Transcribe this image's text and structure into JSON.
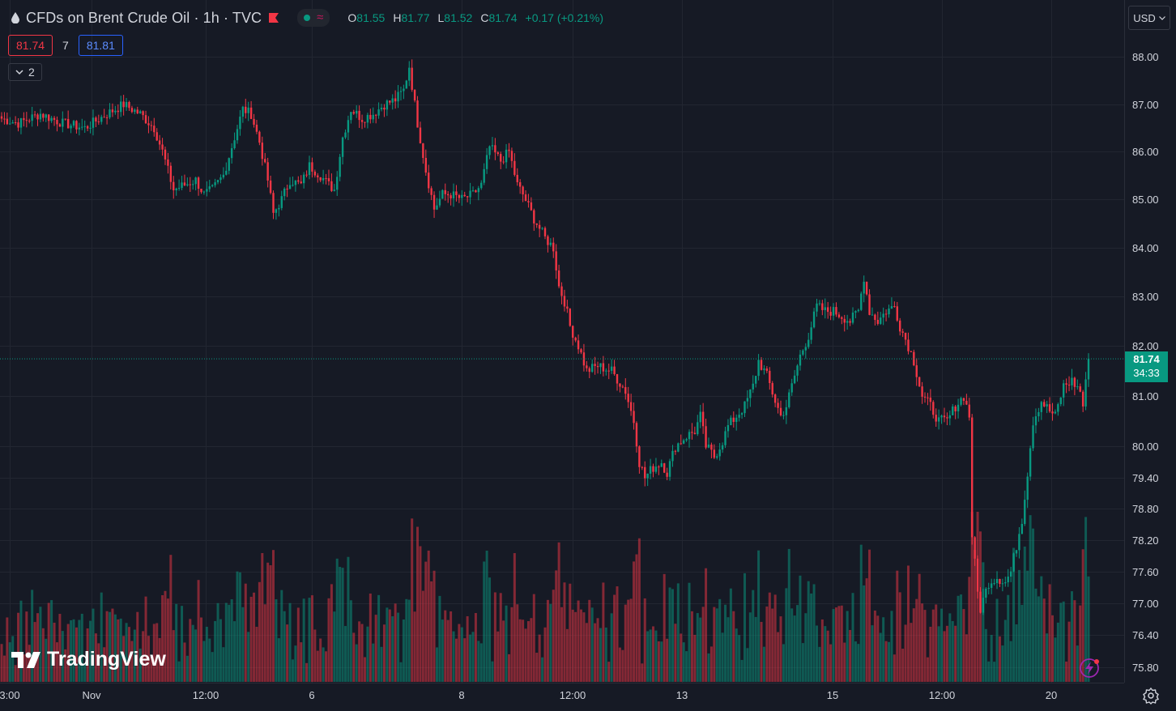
{
  "header": {
    "title": "CFDs on Brent Crude Oil · 1h · TVC",
    "ohlc": [
      {
        "k": "O",
        "v": "81.55"
      },
      {
        "k": "H",
        "v": "81.77"
      },
      {
        "k": "L",
        "v": "81.52"
      },
      {
        "k": "C",
        "v": "81.74"
      }
    ],
    "change": "+0.17 (+0.21%)",
    "bid": "81.74",
    "spread": "7",
    "ask": "81.81",
    "collapse_count": "2",
    "currency": "USD",
    "icons": [
      "drop-icon",
      "flag-icon",
      "market-open-dot-icon",
      "wave-icon",
      "chevron-down-icon",
      "settings-gear-icon",
      "lightning-icon"
    ]
  },
  "logo_text": "TradingView",
  "last_price": {
    "price": "81.74",
    "countdown": "34:33"
  },
  "colors": {
    "up": "#089981",
    "down": "#f23645",
    "background": "#161a25",
    "grid": "#222631"
  },
  "chart_data": {
    "type": "candlestick",
    "y_axis_ticks": [
      "88.00",
      "87.00",
      "86.00",
      "85.00",
      "84.00",
      "83.00",
      "82.00",
      "81.00",
      "80.00",
      "79.40",
      "78.80",
      "78.20",
      "77.60",
      "77.00",
      "76.40",
      "75.80"
    ],
    "x_axis_ticks": [
      "3:00",
      "Nov",
      "12:00",
      "6",
      "8",
      "12:00",
      "13",
      "15",
      "12:00",
      "20"
    ],
    "last_close": 81.74,
    "price_range": [
      75.5,
      88.3
    ],
    "scale": "price",
    "anchors": [
      [
        0,
        86.7
      ],
      [
        6,
        86.6
      ],
      [
        14,
        86.8
      ],
      [
        22,
        86.6
      ],
      [
        30,
        86.5
      ],
      [
        38,
        86.8
      ],
      [
        44,
        87.0
      ],
      [
        50,
        86.8
      ],
      [
        55,
        86.5
      ],
      [
        58,
        86.0
      ],
      [
        62,
        85.2
      ],
      [
        66,
        85.3
      ],
      [
        70,
        85.4
      ],
      [
        73,
        85.1
      ],
      [
        76,
        85.2
      ],
      [
        80,
        85.5
      ],
      [
        84,
        86.3
      ],
      [
        87,
        86.9
      ],
      [
        90,
        86.8
      ],
      [
        93,
        86.2
      ],
      [
        96,
        85.4
      ],
      [
        98,
        84.7
      ],
      [
        101,
        85.0
      ],
      [
        104,
        85.4
      ],
      [
        108,
        85.3
      ],
      [
        111,
        85.7
      ],
      [
        115,
        85.5
      ],
      [
        118,
        85.3
      ],
      [
        120,
        85.2
      ],
      [
        123,
        86.3
      ],
      [
        126,
        86.9
      ],
      [
        130,
        86.7
      ],
      [
        134,
        86.8
      ],
      [
        138,
        87.0
      ],
      [
        142,
        87.1
      ],
      [
        145,
        87.3
      ],
      [
        147,
        87.8
      ],
      [
        150,
        86.6
      ],
      [
        153,
        85.6
      ],
      [
        156,
        84.8
      ],
      [
        159,
        85.1
      ],
      [
        162,
        85.1
      ],
      [
        166,
        85.0
      ],
      [
        170,
        85.1
      ],
      [
        173,
        85.3
      ],
      [
        176,
        86.1
      ],
      [
        180,
        85.8
      ],
      [
        183,
        86.0
      ],
      [
        186,
        85.3
      ],
      [
        188,
        85.1
      ],
      [
        192,
        84.6
      ],
      [
        196,
        84.2
      ],
      [
        199,
        84.0
      ],
      [
        201,
        83.2
      ],
      [
        203,
        82.9
      ],
      [
        205,
        82.4
      ],
      [
        208,
        82.0
      ],
      [
        211,
        81.5
      ],
      [
        215,
        81.6
      ],
      [
        220,
        81.5
      ],
      [
        225,
        81.1
      ],
      [
        228,
        80.5
      ],
      [
        230,
        79.7
      ],
      [
        232,
        79.4
      ],
      [
        235,
        79.6
      ],
      [
        238,
        79.7
      ],
      [
        240,
        79.5
      ],
      [
        243,
        80.0
      ],
      [
        247,
        80.2
      ],
      [
        250,
        80.3
      ],
      [
        252,
        80.6
      ],
      [
        254,
        80.0
      ],
      [
        257,
        79.8
      ],
      [
        260,
        80.1
      ],
      [
        262,
        80.4
      ],
      [
        265,
        80.6
      ],
      [
        268,
        80.8
      ],
      [
        271,
        81.2
      ],
      [
        273,
        81.7
      ],
      [
        276,
        81.4
      ],
      [
        279,
        80.9
      ],
      [
        281,
        80.6
      ],
      [
        283,
        80.8
      ],
      [
        286,
        81.4
      ],
      [
        288,
        81.8
      ],
      [
        291,
        82.2
      ],
      [
        294,
        82.8
      ],
      [
        297,
        82.7
      ],
      [
        300,
        82.7
      ],
      [
        303,
        82.6
      ],
      [
        306,
        82.5
      ],
      [
        309,
        82.7
      ],
      [
        311,
        83.4
      ],
      [
        313,
        82.7
      ],
      [
        316,
        82.5
      ],
      [
        319,
        82.7
      ],
      [
        322,
        82.8
      ],
      [
        324,
        82.4
      ],
      [
        327,
        82.0
      ],
      [
        329,
        81.7
      ],
      [
        332,
        81.0
      ],
      [
        335,
        80.8
      ],
      [
        338,
        80.5
      ],
      [
        341,
        80.5
      ],
      [
        344,
        80.8
      ],
      [
        347,
        81.0
      ],
      [
        349,
        80.6
      ],
      [
        350,
        78.3
      ],
      [
        352,
        77.2
      ],
      [
        353,
        76.9
      ],
      [
        356,
        77.4
      ],
      [
        359,
        77.5
      ],
      [
        362,
        77.4
      ],
      [
        364,
        77.6
      ],
      [
        366,
        78.1
      ],
      [
        368,
        78.6
      ],
      [
        370,
        79.5
      ],
      [
        372,
        80.5
      ],
      [
        375,
        80.9
      ],
      [
        378,
        80.7
      ],
      [
        380,
        80.6
      ],
      [
        383,
        81.2
      ],
      [
        386,
        81.3
      ],
      [
        389,
        81.1
      ],
      [
        390,
        80.8
      ],
      [
        392,
        81.7
      ]
    ],
    "volume_note": "volume histogram at bottom, bars colored by candle direction"
  }
}
